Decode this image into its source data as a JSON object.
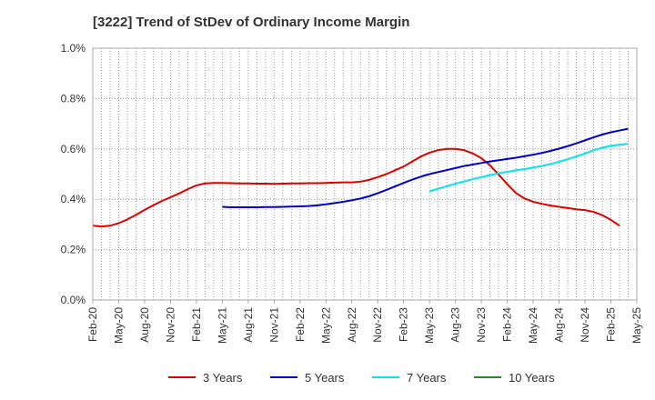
{
  "chart_data": {
    "type": "line",
    "title": "[3222]  Trend of StDev of Ordinary Income Margin",
    "xlabel": "",
    "ylabel": "",
    "x_ticks": [
      "Feb-20",
      "May-20",
      "Aug-20",
      "Nov-20",
      "Feb-21",
      "May-21",
      "Aug-21",
      "Nov-21",
      "Feb-22",
      "May-22",
      "Aug-22",
      "Nov-22",
      "Feb-23",
      "May-23",
      "Aug-23",
      "Nov-23",
      "Feb-24",
      "May-24",
      "Aug-24",
      "Nov-24",
      "Feb-25",
      "May-25"
    ],
    "y_ticks": [
      "0.0%",
      "0.2%",
      "0.4%",
      "0.6%",
      "0.8%",
      "1.0%"
    ],
    "ylim": [
      0,
      1.0
    ],
    "y_unit": "%",
    "grid": true,
    "legend_position": "bottom",
    "series": [
      {
        "name": "3 Years",
        "color": "#dd0000",
        "points": [
          [
            "Feb-20",
            0.295
          ],
          [
            "Mar-20",
            0.292
          ],
          [
            "Apr-20",
            0.295
          ],
          [
            "May-20",
            0.305
          ],
          [
            "Jun-20",
            0.32
          ],
          [
            "Jul-20",
            0.338
          ],
          [
            "Aug-20",
            0.358
          ],
          [
            "Sep-20",
            0.376
          ],
          [
            "Oct-20",
            0.393
          ],
          [
            "Nov-20",
            0.408
          ],
          [
            "Dec-20",
            0.423
          ],
          [
            "Jan-21",
            0.44
          ],
          [
            "Feb-21",
            0.455
          ],
          [
            "Mar-21",
            0.463
          ],
          [
            "Apr-21",
            0.465
          ],
          [
            "May-21",
            0.465
          ],
          [
            "Jun-21",
            0.464
          ],
          [
            "Jul-21",
            0.463
          ],
          [
            "Aug-21",
            0.463
          ],
          [
            "Sep-21",
            0.462
          ],
          [
            "Oct-21",
            0.462
          ],
          [
            "Nov-21",
            0.461
          ],
          [
            "Dec-21",
            0.462
          ],
          [
            "Jan-22",
            0.463
          ],
          [
            "Feb-22",
            0.463
          ],
          [
            "Mar-22",
            0.464
          ],
          [
            "Apr-22",
            0.464
          ],
          [
            "May-22",
            0.465
          ],
          [
            "Jun-22",
            0.466
          ],
          [
            "Jul-22",
            0.467
          ],
          [
            "Aug-22",
            0.467
          ],
          [
            "Sep-22",
            0.47
          ],
          [
            "Oct-22",
            0.477
          ],
          [
            "Nov-22",
            0.488
          ],
          [
            "Dec-22",
            0.5
          ],
          [
            "Jan-23",
            0.515
          ],
          [
            "Feb-23",
            0.53
          ],
          [
            "Mar-23",
            0.55
          ],
          [
            "Apr-23",
            0.57
          ],
          [
            "May-23",
            0.585
          ],
          [
            "Jun-23",
            0.595
          ],
          [
            "Jul-23",
            0.6
          ],
          [
            "Aug-23",
            0.6
          ],
          [
            "Sep-23",
            0.595
          ],
          [
            "Oct-23",
            0.582
          ],
          [
            "Nov-23",
            0.563
          ],
          [
            "Dec-23",
            0.535
          ],
          [
            "Jan-24",
            0.498
          ],
          [
            "Feb-24",
            0.46
          ],
          [
            "Mar-24",
            0.425
          ],
          [
            "Apr-24",
            0.403
          ],
          [
            "May-24",
            0.39
          ],
          [
            "Jun-24",
            0.382
          ],
          [
            "Jul-24",
            0.375
          ],
          [
            "Aug-24",
            0.37
          ],
          [
            "Sep-24",
            0.365
          ],
          [
            "Oct-24",
            0.36
          ],
          [
            "Nov-24",
            0.357
          ],
          [
            "Dec-24",
            0.35
          ],
          [
            "Jan-25",
            0.337
          ],
          [
            "Feb-25",
            0.318
          ],
          [
            "Mar-25",
            0.295
          ]
        ]
      },
      {
        "name": "5 Years",
        "color": "#0000cc",
        "points": [
          [
            "May-21",
            0.37
          ],
          [
            "Jun-21",
            0.368
          ],
          [
            "Jul-21",
            0.368
          ],
          [
            "Aug-21",
            0.368
          ],
          [
            "Sep-21",
            0.368
          ],
          [
            "Oct-21",
            0.369
          ],
          [
            "Nov-21",
            0.369
          ],
          [
            "Dec-21",
            0.37
          ],
          [
            "Jan-22",
            0.371
          ],
          [
            "Feb-22",
            0.372
          ],
          [
            "Mar-22",
            0.373
          ],
          [
            "Apr-22",
            0.376
          ],
          [
            "May-22",
            0.38
          ],
          [
            "Jun-22",
            0.385
          ],
          [
            "Jul-22",
            0.39
          ],
          [
            "Aug-22",
            0.396
          ],
          [
            "Sep-22",
            0.403
          ],
          [
            "Oct-22",
            0.412
          ],
          [
            "Nov-22",
            0.424
          ],
          [
            "Dec-22",
            0.437
          ],
          [
            "Jan-23",
            0.451
          ],
          [
            "Feb-23",
            0.465
          ],
          [
            "Mar-23",
            0.478
          ],
          [
            "Apr-23",
            0.49
          ],
          [
            "May-23",
            0.5
          ],
          [
            "Jun-23",
            0.508
          ],
          [
            "Jul-23",
            0.516
          ],
          [
            "Aug-23",
            0.524
          ],
          [
            "Sep-23",
            0.532
          ],
          [
            "Oct-23",
            0.538
          ],
          [
            "Nov-23",
            0.544
          ],
          [
            "Dec-23",
            0.55
          ],
          [
            "Jan-24",
            0.555
          ],
          [
            "Feb-24",
            0.56
          ],
          [
            "Mar-24",
            0.565
          ],
          [
            "Apr-24",
            0.571
          ],
          [
            "May-24",
            0.577
          ],
          [
            "Jun-24",
            0.584
          ],
          [
            "Jul-24",
            0.592
          ],
          [
            "Aug-24",
            0.601
          ],
          [
            "Sep-24",
            0.611
          ],
          [
            "Oct-24",
            0.622
          ],
          [
            "Nov-24",
            0.634
          ],
          [
            "Dec-24",
            0.646
          ],
          [
            "Jan-25",
            0.657
          ],
          [
            "Feb-25",
            0.666
          ],
          [
            "Mar-25",
            0.673
          ],
          [
            "Apr-25",
            0.68
          ]
        ]
      },
      {
        "name": "7 Years",
        "color": "#00e5ee",
        "points": [
          [
            "May-23",
            0.432
          ],
          [
            "Jun-23",
            0.442
          ],
          [
            "Jul-23",
            0.452
          ],
          [
            "Aug-23",
            0.462
          ],
          [
            "Sep-23",
            0.471
          ],
          [
            "Oct-23",
            0.48
          ],
          [
            "Nov-23",
            0.488
          ],
          [
            "Dec-23",
            0.496
          ],
          [
            "Jan-24",
            0.503
          ],
          [
            "Feb-24",
            0.509
          ],
          [
            "Mar-24",
            0.515
          ],
          [
            "Apr-24",
            0.52
          ],
          [
            "May-24",
            0.526
          ],
          [
            "Jun-24",
            0.532
          ],
          [
            "Jul-24",
            0.54
          ],
          [
            "Aug-24",
            0.549
          ],
          [
            "Sep-24",
            0.559
          ],
          [
            "Oct-24",
            0.57
          ],
          [
            "Nov-24",
            0.582
          ],
          [
            "Dec-24",
            0.595
          ],
          [
            "Jan-25",
            0.605
          ],
          [
            "Feb-25",
            0.612
          ],
          [
            "Mar-25",
            0.617
          ],
          [
            "Apr-25",
            0.62
          ]
        ]
      },
      {
        "name": "10 Years",
        "color": "#228b22",
        "points": []
      }
    ]
  }
}
